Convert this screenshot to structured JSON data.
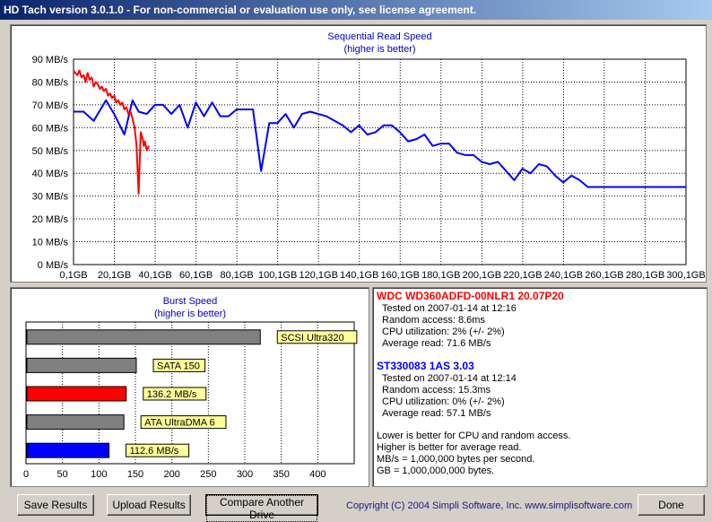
{
  "window": {
    "title": "HD Tach version 3.0.1.0  - For non-commercial or evaluation use only, see license agreement."
  },
  "read_chart": {
    "title": "Sequential Read Speed",
    "subtitle": "(higher is better)"
  },
  "burst_chart": {
    "title": "Burst Speed",
    "subtitle": "(higher is better)"
  },
  "drives": [
    {
      "name": "WDC WD360ADFD-00NLR1 20.07P20",
      "color": "#ff0000",
      "tested": "Tested on 2007-01-14 at 12:16",
      "random_access": "Random access: 8.6ms",
      "cpu": "CPU utilization: 2% (+/- 2%)",
      "avg_read": "Average read: 71.6 MB/s"
    },
    {
      "name": "ST330083 1AS  3.03",
      "color": "#0000ff",
      "tested": "Tested on 2007-01-14 at 12:14",
      "random_access": "Random access: 15.3ms",
      "cpu": "CPU utilization: 0% (+/- 2%)",
      "avg_read": "Average read: 57.1 MB/s"
    }
  ],
  "notes": [
    "Lower is better for CPU and random access.",
    "Higher is better for average read.",
    "MB/s = 1,000,000 bytes per second.",
    "GB = 1,000,000,000 bytes."
  ],
  "buttons": {
    "save": "Save Results",
    "upload": "Upload Results",
    "compare": "Compare Another Drive",
    "done": "Done"
  },
  "copyright": "Copyright (C) 2004 Simpli Software, Inc. www.simplisoftware.com",
  "chart_data": [
    {
      "type": "line",
      "title": "Sequential Read Speed",
      "subtitle": "(higher is better)",
      "x_tick_labels": [
        "0,1GB",
        "20,1GB",
        "40,1GB",
        "60,1GB",
        "80,1GB",
        "100,1GB",
        "120,1GB",
        "140,1GB",
        "160,1GB",
        "180,1GB",
        "200,1GB",
        "220,1GB",
        "240,1GB",
        "260,1GB",
        "280,1GB",
        "300,1GB"
      ],
      "y_tick_labels": [
        "0 MB/s",
        "10 MB/s",
        "20 MB/s",
        "30 MB/s",
        "40 MB/s",
        "50 MB/s",
        "60 MB/s",
        "70 MB/s",
        "80 MB/s",
        "90 MB/s"
      ],
      "xlim": [
        0.1,
        300.1
      ],
      "ylim": [
        0,
        90
      ],
      "grid": true,
      "series": [
        {
          "color": "#ff0000",
          "x": [
            0.1,
            1,
            2,
            3,
            4,
            5,
            6,
            7,
            8,
            9,
            10,
            11,
            12,
            13,
            14,
            15,
            16,
            17,
            18,
            19,
            20,
            21,
            22,
            23,
            24,
            25,
            26,
            27,
            28,
            29,
            29.5,
            30,
            31,
            32,
            33,
            34,
            34.5,
            35,
            36,
            37
          ],
          "y": [
            85,
            84,
            83,
            85,
            82,
            83,
            80,
            84,
            81,
            82,
            78,
            80,
            79,
            77,
            78,
            76,
            77,
            74,
            75,
            73,
            74,
            71,
            72,
            70,
            71,
            68,
            69,
            66,
            67,
            64,
            62,
            60,
            52,
            31,
            58,
            55,
            52,
            54,
            50,
            52
          ]
        },
        {
          "color": "#0000ff",
          "x": [
            0.1,
            5,
            10,
            16,
            20,
            25,
            29,
            32,
            36,
            40,
            44,
            48,
            52,
            56,
            60,
            64,
            68,
            72,
            76,
            80,
            84,
            88,
            92,
            96,
            100,
            104,
            108,
            112,
            116,
            120,
            124,
            128,
            132,
            136,
            140,
            144,
            148,
            152,
            156,
            160,
            164,
            168,
            172,
            176,
            180,
            184,
            188,
            192,
            196,
            200,
            204,
            208,
            212,
            216,
            220,
            224,
            228,
            232,
            236,
            240,
            244,
            248,
            252,
            256,
            260,
            264,
            268,
            272,
            276,
            280,
            284,
            288,
            292,
            296,
            300.1
          ],
          "y": [
            67,
            67,
            63,
            72,
            66,
            57,
            72,
            67,
            66,
            70,
            70,
            66,
            70,
            60,
            71,
            65,
            71,
            65,
            65,
            68,
            68,
            68,
            41,
            62,
            62,
            66,
            60,
            66,
            67,
            66,
            65,
            63,
            61,
            58,
            61,
            57,
            58,
            61,
            61,
            58,
            54,
            55,
            57,
            52,
            53,
            53,
            49,
            48,
            48,
            45,
            44,
            45,
            41,
            37,
            42,
            40,
            44,
            43,
            39,
            36,
            39,
            37,
            34,
            34,
            34,
            34,
            34,
            34,
            34,
            34,
            34,
            34,
            34,
            34,
            34
          ]
        }
      ]
    },
    {
      "type": "bar",
      "title": "Burst Speed",
      "subtitle": "(higher is better)",
      "xlim": [
        0,
        450
      ],
      "x_tick_labels": [
        "0",
        "50",
        "100",
        "150",
        "200",
        "250",
        "300",
        "350",
        "400"
      ],
      "bars": [
        {
          "value": 320,
          "label": "SCSI Ultra320",
          "color": "#808080"
        },
        {
          "value": 150,
          "label": "SATA 150",
          "color": "#808080"
        },
        {
          "value": 136.2,
          "label": "136.2 MB/s",
          "color": "#ff0000"
        },
        {
          "value": 133,
          "label": "ATA UltraDMA 6",
          "color": "#808080"
        },
        {
          "value": 112.6,
          "label": "112.6 MB/s",
          "color": "#0000ff"
        }
      ]
    }
  ]
}
